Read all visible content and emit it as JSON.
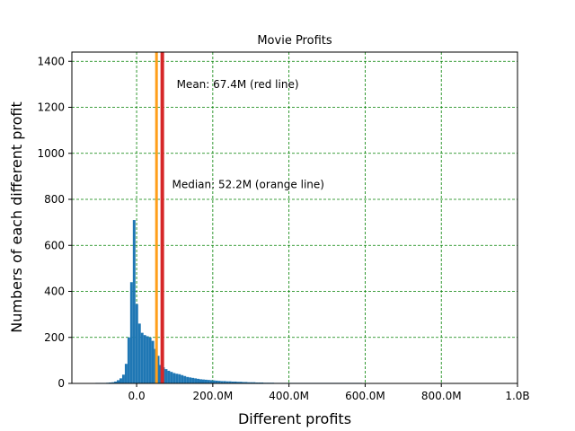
{
  "chart_data": {
    "type": "bar",
    "title": "Movie Profits",
    "xlabel": "Different profits",
    "ylabel": "Numbers of each different profit",
    "xlim": [
      -170,
      1000
    ],
    "ylim": [
      0,
      1440
    ],
    "x_ticks": [
      {
        "value": 0,
        "label": "0.0"
      },
      {
        "value": 200,
        "label": "200.0M"
      },
      {
        "value": 400,
        "label": "400.0M"
      },
      {
        "value": 600,
        "label": "600.0M"
      },
      {
        "value": 800,
        "label": "800.0M"
      },
      {
        "value": 1000,
        "label": "1.0B"
      }
    ],
    "y_ticks": [
      0,
      200,
      400,
      600,
      800,
      1000,
      1200,
      1400
    ],
    "grid": true,
    "grid_color": "#008000",
    "bar_color": "#1f77b4",
    "bin_width": 7,
    "bin_start": -108,
    "counts": [
      1,
      1,
      2,
      2,
      3,
      4,
      5,
      8,
      14,
      22,
      38,
      85,
      200,
      440,
      710,
      345,
      260,
      220,
      210,
      205,
      200,
      185,
      150,
      120,
      80,
      70,
      62,
      55,
      50,
      45,
      42,
      40,
      36,
      32,
      28,
      26,
      24,
      22,
      20,
      18,
      17,
      16,
      15,
      14,
      13,
      12,
      11,
      10,
      10,
      9,
      9,
      8,
      8,
      7,
      7,
      6,
      6,
      5,
      5,
      5,
      4,
      4,
      4,
      3,
      3,
      3,
      3,
      2,
      2,
      2,
      2,
      2,
      2,
      2,
      1,
      1,
      1,
      1,
      1,
      1,
      1,
      1,
      1,
      1,
      1,
      1,
      1,
      1,
      1,
      1,
      1,
      1,
      1,
      1,
      1,
      1,
      1,
      1,
      1,
      1,
      0,
      0,
      0,
      0,
      0,
      0,
      0,
      0,
      0,
      0,
      0,
      0,
      0,
      0,
      0,
      0,
      0,
      0,
      0,
      0,
      0,
      0,
      0,
      0,
      0,
      0,
      0,
      0,
      0,
      0,
      0,
      0,
      0,
      0,
      0,
      0,
      0,
      0,
      0,
      0,
      0,
      0,
      0,
      0,
      0,
      0,
      0,
      0,
      0,
      0,
      0,
      0,
      0,
      0,
      0,
      0,
      0,
      0,
      0,
      0,
      0
    ],
    "mean": {
      "value": 67.4,
      "color": "#d62728",
      "label": "Mean: 67.4M (red line)",
      "label_at": [
        105,
        1300
      ]
    },
    "median": {
      "value": 52.2,
      "color": "#ff9f1a",
      "label": "Median: 52.2M (orange line)",
      "label_at": [
        93,
        865
      ]
    }
  }
}
